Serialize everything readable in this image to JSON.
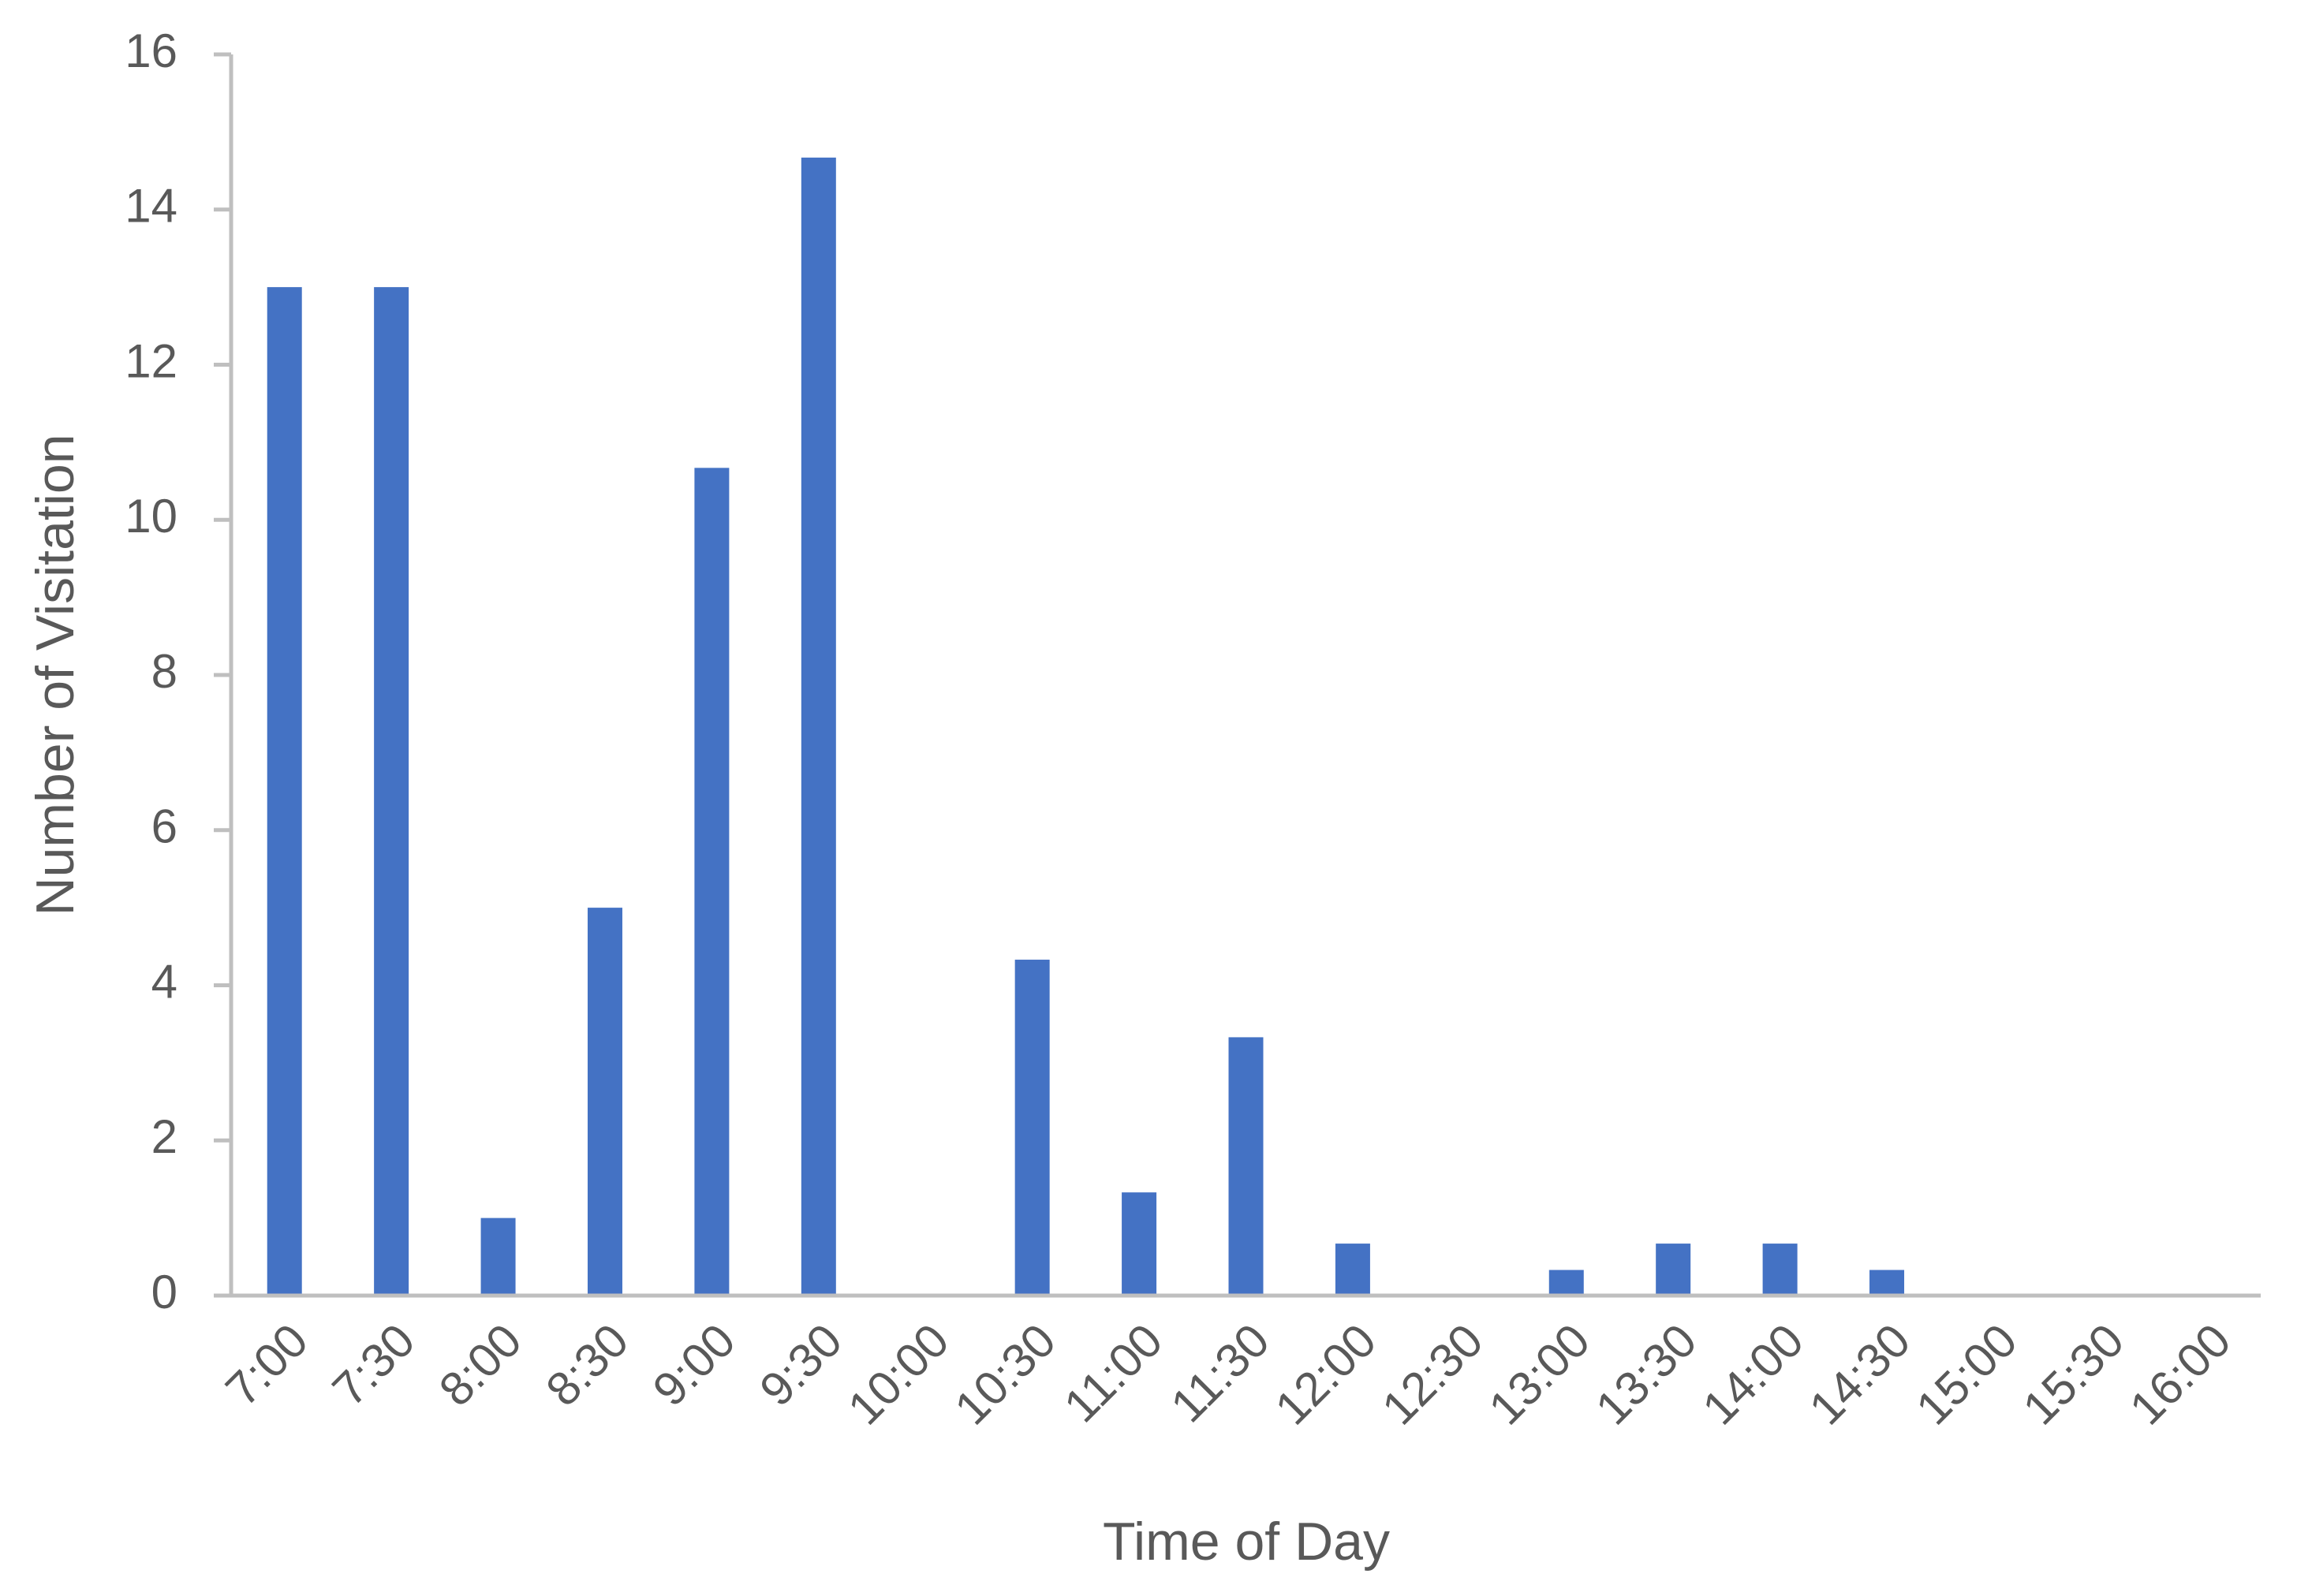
{
  "chart_data": {
    "type": "bar",
    "x_label": "Time of Day",
    "y_label": "Number of Visitation",
    "categories": [
      "7:00",
      "7:30",
      "8:00",
      "8:30",
      "9:00",
      "9:30",
      "10:00",
      "10:30",
      "11:00",
      "11:30",
      "12:00",
      "12:30",
      "13:00",
      "13:30",
      "14:00",
      "14:30",
      "15:00",
      "15:30",
      "16:00"
    ],
    "values": [
      13,
      13,
      1,
      5,
      10.67,
      14.67,
      0,
      4.33,
      1.33,
      3.33,
      0.67,
      0,
      0.33,
      0.67,
      0.67,
      0.33,
      0,
      0,
      0
    ],
    "color": "#4472c4",
    "ylim": [
      0,
      16
    ],
    "yticks": [
      0,
      2,
      4,
      6,
      8,
      10,
      12,
      14,
      16
    ],
    "grid": false
  }
}
